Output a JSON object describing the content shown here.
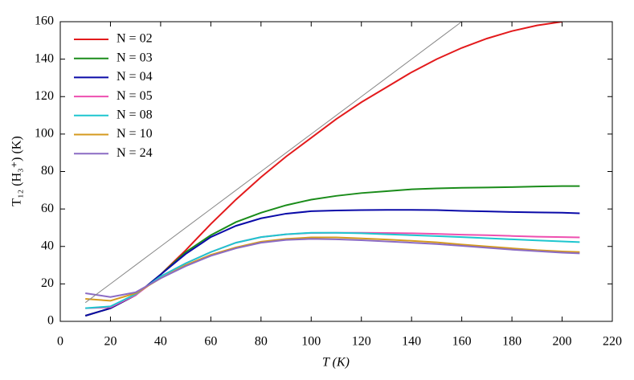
{
  "chart_data": {
    "type": "line",
    "xlabel": "T (K)",
    "ylabel": "T₁₂ (H₃⁺) (K)",
    "x": [
      10,
      20,
      30,
      40,
      50,
      60,
      70,
      80,
      90,
      100,
      110,
      120,
      130,
      140,
      150,
      160,
      170,
      180,
      190,
      200,
      207
    ],
    "xlim": [
      0,
      220
    ],
    "xticks": [
      0,
      20,
      40,
      60,
      80,
      100,
      120,
      140,
      160,
      180,
      200,
      220
    ],
    "ylim": [
      0,
      160
    ],
    "yticks": [
      0,
      20,
      40,
      60,
      80,
      100,
      120,
      140,
      160
    ],
    "legend": "upper left",
    "series": [
      {
        "name": "N = 02",
        "color": "#e31a1c",
        "values": [
          3,
          7,
          14,
          25,
          38,
          52,
          65,
          77,
          88,
          98,
          108,
          117,
          125,
          133,
          140,
          146,
          151,
          155,
          158,
          160,
          null
        ]
      },
      {
        "name": "N = 03",
        "color": "#1a8c1a",
        "values": [
          3,
          7,
          14,
          25,
          37,
          46,
          53,
          58,
          62,
          65,
          67,
          68.5,
          69.5,
          70.5,
          71,
          71.3,
          71.5,
          71.7,
          72,
          72.2,
          72.2
        ]
      },
      {
        "name": "N = 04",
        "color": "#0a0aa8",
        "values": [
          3,
          7,
          14,
          25,
          36,
          45,
          51,
          55,
          57.5,
          58.8,
          59.2,
          59.4,
          59.5,
          59.5,
          59.4,
          59,
          58.7,
          58.4,
          58.2,
          58,
          57.7
        ]
      },
      {
        "name": "N = 05",
        "color": "#ee4fb0",
        "values": [
          7,
          7.5,
          14,
          24,
          31,
          37,
          42,
          45,
          46.5,
          47.2,
          47.3,
          47.3,
          47.2,
          47,
          46.7,
          46.3,
          46,
          45.6,
          45.2,
          45,
          44.8
        ]
      },
      {
        "name": "N = 08",
        "color": "#1ec6cf",
        "values": [
          7,
          8,
          14.5,
          24,
          31,
          37,
          42,
          45,
          46.5,
          47.3,
          47.3,
          47,
          46.5,
          46,
          45.5,
          45,
          44.4,
          43.8,
          43.2,
          42.7,
          42.3
        ]
      },
      {
        "name": "N = 10",
        "color": "#d49a1e",
        "values": [
          12,
          11,
          15,
          23,
          30,
          35.5,
          39.5,
          42.5,
          44,
          44.8,
          44.8,
          44.3,
          43.7,
          43,
          42.2,
          41,
          40,
          39,
          38,
          37.3,
          37
        ]
      },
      {
        "name": "N = 24",
        "color": "#8b6bc4",
        "values": [
          15,
          13,
          15.5,
          23,
          29.5,
          35,
          39,
          42,
          43.5,
          44,
          43.8,
          43.3,
          42.7,
          42,
          41.3,
          40.3,
          39.3,
          38.3,
          37.5,
          36.7,
          36.3
        ]
      },
      {
        "color": "#888888",
        "values": [
          10,
          20,
          30,
          40,
          50,
          60,
          70,
          80,
          90,
          100,
          110,
          120,
          130,
          140,
          150,
          160,
          null,
          null,
          null,
          null,
          null
        ]
      }
    ]
  }
}
